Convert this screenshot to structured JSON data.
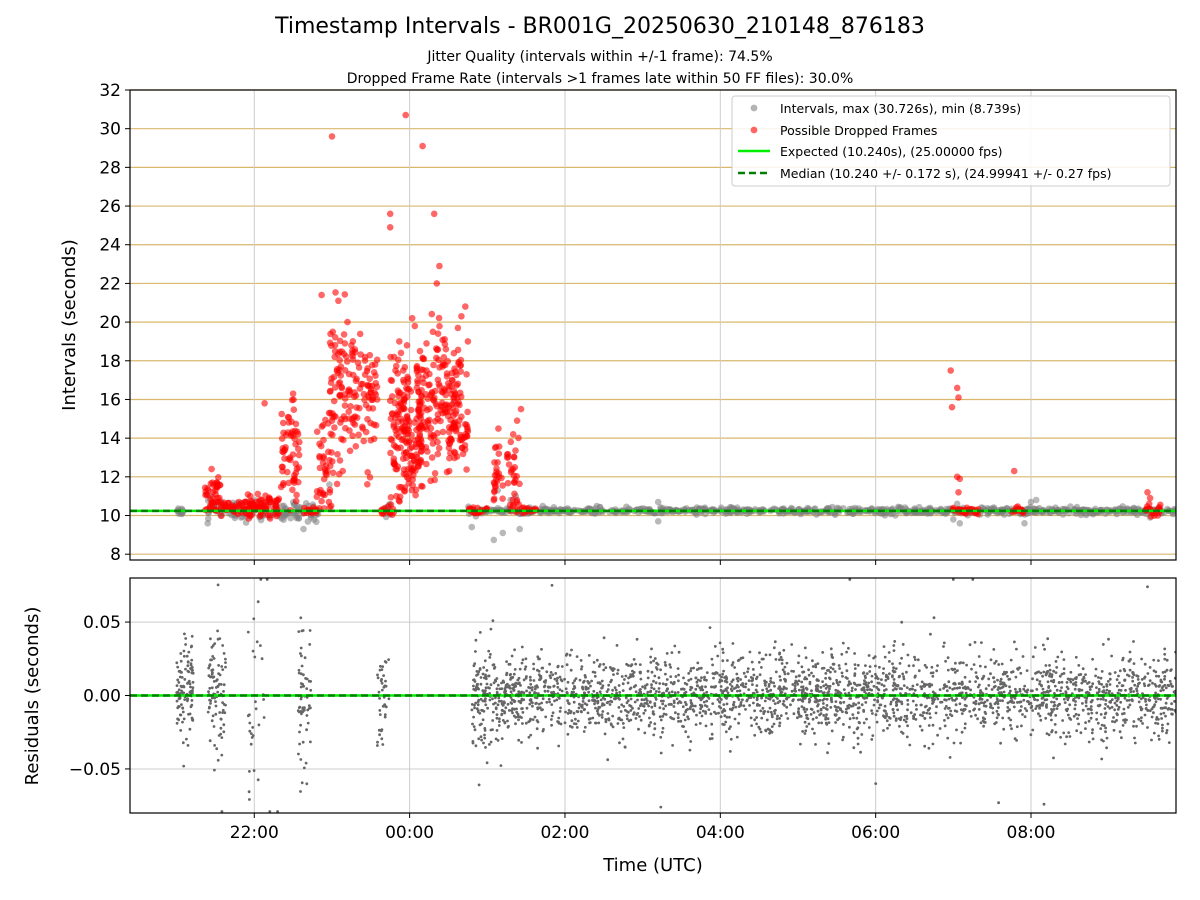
{
  "title": "Timestamp Intervals - BR001G_20250630_210148_876183",
  "subtitle_jitter": "Jitter Quality (intervals within +/-1 frame): 74.5%",
  "subtitle_dropped": "Dropped Frame Rate (intervals >1 frames late within 50 FF files): 30.0%",
  "colors": {
    "intervals": "#808080",
    "dropped": "#ff0000",
    "expected": "#00ee00",
    "median": "#008000",
    "hgrid": "#d9b86c",
    "grid": "#cccccc",
    "residuals": "#666666"
  },
  "chart_data": [
    {
      "type": "scatter",
      "panel": "top",
      "xlabel": "",
      "ylabel": "Intervals (seconds)",
      "xlim": [
        "20:24",
        "09:52"
      ],
      "ylim": [
        7.7,
        32
      ],
      "yticks": [
        "8",
        "10",
        "12",
        "14",
        "16",
        "18",
        "20",
        "22",
        "24",
        "26",
        "28",
        "30",
        "32"
      ],
      "grid": "horizontal and vertical",
      "legend_position": "top-right",
      "legend": [
        "Intervals, max (30.726s), min (8.739s)",
        "Possible Dropped Frames",
        "Expected (10.240s), (25.00000 fps)",
        "Median (10.240 +/- 0.172 s), (24.99941 +/- 0.27 fps)"
      ],
      "expected_interval": 10.24,
      "median_interval": 10.24,
      "intervals_max": 30.726,
      "intervals_min": 8.739,
      "series": [
        {
          "name": "Intervals, max (30.726s), min (8.739s)",
          "clusters": [
            {
              "start": "21:00",
              "end": "21:05",
              "center": 10.24,
              "spread": 0.1,
              "count": 12
            },
            {
              "start": "21:24",
              "end": "22:50",
              "center": 10.24,
              "spread": 0.25,
              "count": 130
            },
            {
              "start": "23:40",
              "end": "23:45",
              "center": 10.24,
              "spread": 0.2,
              "count": 12
            },
            {
              "start": "00:45",
              "end": "09:52",
              "center": 10.24,
              "spread": 0.08,
              "count": 820
            }
          ],
          "points": [
            {
              "x": "21:24",
              "y": 9.6
            },
            {
              "x": "21:26",
              "y": 11.0
            },
            {
              "x": "22:38",
              "y": 9.3
            },
            {
              "x": "22:58",
              "y": 11.6
            },
            {
              "x": "00:48",
              "y": 9.4
            },
            {
              "x": "01:05",
              "y": 8.739
            },
            {
              "x": "01:08",
              "y": 11.3
            },
            {
              "x": "01:12",
              "y": 9.1
            },
            {
              "x": "01:18",
              "y": 10.8
            },
            {
              "x": "01:22",
              "y": 11.0
            },
            {
              "x": "01:25",
              "y": 9.3
            },
            {
              "x": "03:12",
              "y": 10.7
            },
            {
              "x": "03:12",
              "y": 9.7
            },
            {
              "x": "07:00",
              "y": 9.8
            },
            {
              "x": "07:03",
              "y": 10.6
            },
            {
              "x": "07:05",
              "y": 9.6
            },
            {
              "x": "07:55",
              "y": 9.6
            },
            {
              "x": "08:00",
              "y": 10.7
            },
            {
              "x": "08:04",
              "y": 10.8
            },
            {
              "x": "09:32",
              "y": 9.9
            }
          ]
        },
        {
          "name": "Possible Dropped Frames",
          "clusters": [
            {
              "start": "21:22",
              "end": "21:34",
              "center": 10.9,
              "spread": 0.6,
              "count": 45
            },
            {
              "start": "21:34",
              "end": "21:52",
              "center": 10.35,
              "spread": 0.2,
              "count": 30
            },
            {
              "start": "21:52",
              "end": "22:20",
              "center": 10.45,
              "spread": 0.3,
              "count": 80
            },
            {
              "start": "22:20",
              "end": "22:35",
              "center": 12.8,
              "spread": 1.4,
              "count": 60
            },
            {
              "start": "22:38",
              "end": "22:48",
              "center": 10.25,
              "spread": 0.1,
              "count": 18
            },
            {
              "start": "22:48",
              "end": "23:00",
              "center": 12.5,
              "spread": 1.3,
              "count": 40
            },
            {
              "start": "22:58",
              "end": "23:10",
              "center": 16.5,
              "spread": 2.3,
              "count": 60
            },
            {
              "start": "23:10",
              "end": "23:35",
              "center": 15.8,
              "spread": 1.6,
              "count": 95
            },
            {
              "start": "23:38",
              "end": "23:48",
              "center": 10.25,
              "spread": 0.1,
              "count": 14
            },
            {
              "start": "23:45",
              "end": "00:00",
              "center": 14.8,
              "spread": 1.9,
              "count": 90
            },
            {
              "start": "23:55",
              "end": "00:10",
              "center": 13.5,
              "spread": 1.8,
              "count": 80
            },
            {
              "start": "00:05",
              "end": "00:25",
              "center": 15.8,
              "spread": 1.7,
              "count": 100
            },
            {
              "start": "00:25",
              "end": "00:40",
              "center": 16.2,
              "spread": 1.6,
              "count": 70
            },
            {
              "start": "00:30",
              "end": "00:45",
              "center": 14.0,
              "spread": 0.7,
              "count": 50
            },
            {
              "start": "00:45",
              "end": "01:00",
              "center": 10.25,
              "spread": 0.1,
              "count": 20
            },
            {
              "start": "01:05",
              "end": "01:12",
              "center": 12.0,
              "spread": 1.0,
              "count": 25
            },
            {
              "start": "01:15",
              "end": "01:25",
              "center": 12.0,
              "spread": 1.2,
              "count": 30
            },
            {
              "start": "01:22",
              "end": "01:38",
              "center": 10.25,
              "spread": 0.08,
              "count": 18
            },
            {
              "start": "06:58",
              "end": "07:20",
              "center": 10.25,
              "spread": 0.1,
              "count": 30
            },
            {
              "start": "07:45",
              "end": "07:57",
              "center": 10.25,
              "spread": 0.1,
              "count": 16
            },
            {
              "start": "09:28",
              "end": "09:40",
              "center": 10.3,
              "spread": 0.2,
              "count": 20
            }
          ],
          "points": [
            {
              "x": "21:27",
              "y": 12.4
            },
            {
              "x": "22:08",
              "y": 15.8
            },
            {
              "x": "22:30",
              "y": 16.3
            },
            {
              "x": "22:52",
              "y": 21.4
            },
            {
              "x": "23:00",
              "y": 29.6
            },
            {
              "x": "23:05",
              "y": 21.1
            },
            {
              "x": "23:12",
              "y": 20.0
            },
            {
              "x": "23:10",
              "y": 18.9
            },
            {
              "x": "23:15",
              "y": 18.8
            },
            {
              "x": "23:45",
              "y": 25.6
            },
            {
              "x": "23:45",
              "y": 24.9
            },
            {
              "x": "23:48",
              "y": 18.2
            },
            {
              "x": "23:52",
              "y": 19.0
            },
            {
              "x": "23:55",
              "y": 17.5
            },
            {
              "x": "23:58",
              "y": 18.8
            },
            {
              "x": "23:57",
              "y": 30.7
            },
            {
              "x": "00:02",
              "y": 20.2
            },
            {
              "x": "00:04",
              "y": 19.8
            },
            {
              "x": "00:08",
              "y": 18.5
            },
            {
              "x": "00:10",
              "y": 29.1
            },
            {
              "x": "00:13",
              "y": 18.9
            },
            {
              "x": "00:18",
              "y": 19.5
            },
            {
              "x": "00:19",
              "y": 25.6
            },
            {
              "x": "00:21",
              "y": 22.0
            },
            {
              "x": "00:23",
              "y": 22.9
            },
            {
              "x": "00:22",
              "y": 19.4
            },
            {
              "x": "00:28",
              "y": 18.6
            },
            {
              "x": "00:33",
              "y": 17.0
            },
            {
              "x": "00:40",
              "y": 20.3
            },
            {
              "x": "00:43",
              "y": 20.8
            },
            {
              "x": "00:45",
              "y": 19.0
            },
            {
              "x": "00:44",
              "y": 17.3
            },
            {
              "x": "01:06",
              "y": 13.5
            },
            {
              "x": "01:20",
              "y": 14.2
            },
            {
              "x": "01:23",
              "y": 14.9
            },
            {
              "x": "01:26",
              "y": 15.5
            },
            {
              "x": "06:58",
              "y": 17.5
            },
            {
              "x": "06:59",
              "y": 15.6
            },
            {
              "x": "07:03",
              "y": 16.6
            },
            {
              "x": "07:04",
              "y": 16.1
            },
            {
              "x": "07:03",
              "y": 12.0
            },
            {
              "x": "07:05",
              "y": 11.9
            },
            {
              "x": "07:04",
              "y": 11.2
            },
            {
              "x": "07:47",
              "y": 12.3
            },
            {
              "x": "09:30",
              "y": 11.2
            },
            {
              "x": "09:32",
              "y": 10.9
            }
          ]
        },
        {
          "name": "Expected (10.240s), (25.00000 fps)",
          "type": "line",
          "y": 10.24
        },
        {
          "name": "Median (10.240 +/- 0.172 s), (24.99941 +/- 0.27 fps)",
          "type": "line",
          "y": 10.24
        }
      ]
    },
    {
      "type": "scatter",
      "panel": "bottom",
      "xlabel": "Time (UTC)",
      "ylabel": "Residuals (seconds)",
      "xlim": [
        "20:24",
        "09:52"
      ],
      "ylim": [
        -0.08,
        0.08
      ],
      "xticks": [
        "22:00",
        "00:00",
        "02:00",
        "04:00",
        "06:00",
        "08:00"
      ],
      "yticks": [
        "0.05",
        "0.00",
        "−0.05"
      ],
      "grid": "horizontal and vertical",
      "series": [
        {
          "name": "",
          "clusters": [
            {
              "start": "21:00",
              "end": "21:13",
              "center": 0.0,
              "spread": 0.016,
              "count": 110
            },
            {
              "start": "21:24",
              "end": "21:38",
              "center": 0.0,
              "spread": 0.024,
              "count": 90
            },
            {
              "start": "21:55",
              "end": "22:08",
              "center": 0.0,
              "spread": 0.035,
              "count": 30
            },
            {
              "start": "22:34",
              "end": "22:44",
              "center": 0.0,
              "spread": 0.025,
              "count": 60
            },
            {
              "start": "23:35",
              "end": "23:44",
              "center": 0.0,
              "spread": 0.018,
              "count": 40
            },
            {
              "start": "00:48",
              "end": "01:12",
              "center": 0.0,
              "spread": 0.018,
              "count": 150
            },
            {
              "start": "01:12",
              "end": "09:52",
              "center": 0.0,
              "spread": 0.014,
              "count": 2500
            }
          ],
          "points": [
            {
              "x": "22:05",
              "y": 0.079
            },
            {
              "x": "22:10",
              "y": 0.079
            },
            {
              "x": "21:35",
              "y": -0.079
            },
            {
              "x": "22:12",
              "y": -0.079
            },
            {
              "x": "22:18",
              "y": -0.079
            },
            {
              "x": "01:50",
              "y": 0.075
            },
            {
              "x": "03:14",
              "y": -0.076
            },
            {
              "x": "05:40",
              "y": 0.079
            },
            {
              "x": "07:00",
              "y": 0.079
            },
            {
              "x": "07:15",
              "y": 0.079
            },
            {
              "x": "08:10",
              "y": -0.074
            },
            {
              "x": "09:30",
              "y": 0.074
            },
            {
              "x": "07:35",
              "y": -0.073
            },
            {
              "x": "06:00",
              "y": -0.06
            }
          ]
        }
      ],
      "reference_lines": [
        {
          "name": "Expected",
          "y": 0.0
        },
        {
          "name": "Median",
          "y": 0.0
        }
      ]
    }
  ]
}
